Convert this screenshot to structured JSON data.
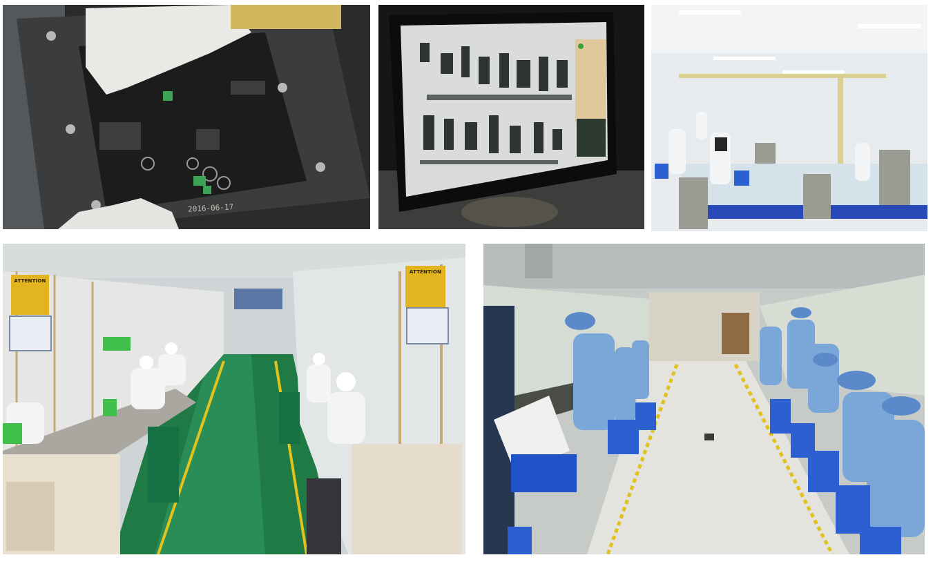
{
  "collage": {
    "photos": [
      {
        "id": "pcb-assembly",
        "subject": "gloved hands placing components on a black PCB in a fixture"
      },
      {
        "id": "xray-inspection",
        "subject": "monitor showing grayscale X-ray inspection of a circuit board"
      },
      {
        "id": "assembly-line-white",
        "subject": "workers in white cleanroom coats at an assembly line"
      },
      {
        "id": "production-hall-green",
        "subject": "two assembly lines along a green epoxy floor aisle"
      },
      {
        "id": "production-hall-blue",
        "subject": "workers in blue uniforms and caps seated on blue stools"
      }
    ],
    "pcb_stamp": "2016-06-17",
    "esd_sign_left": "ATTENTION",
    "esd_sign_right": "ATTENTION",
    "colors": {
      "floor_green": "#1f7a45",
      "lane_yellow": "#e3c21d",
      "uniform_blue": "#7aa6d8",
      "stool_blue": "#2c5fd0",
      "pcb_black": "#1b1c1c"
    }
  }
}
